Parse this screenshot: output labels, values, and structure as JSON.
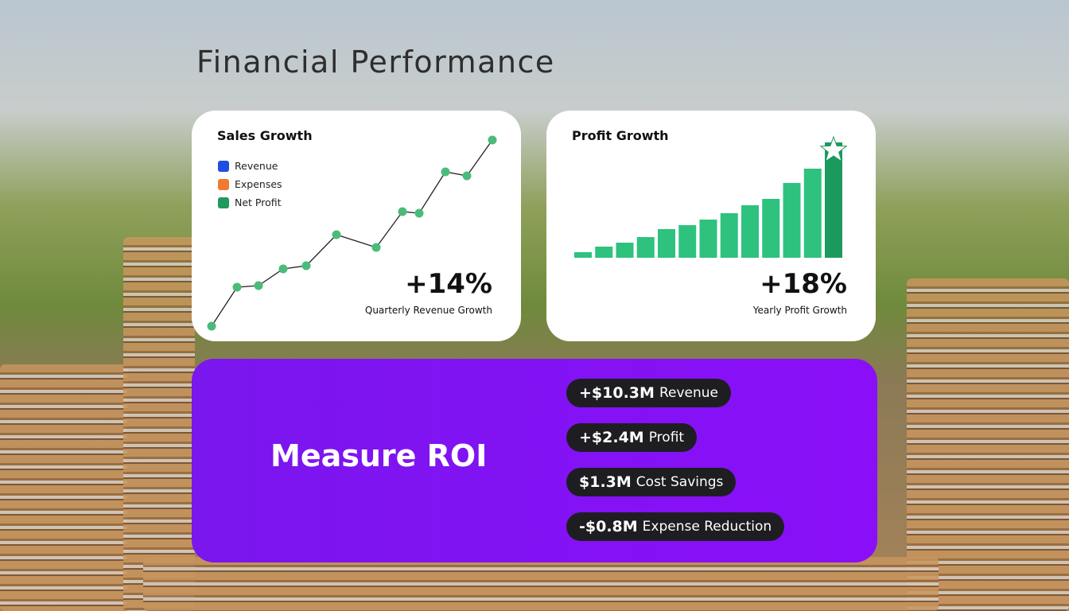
{
  "title": "Financial Performance",
  "chart_data": [
    {
      "type": "line",
      "title": "Sales Growth",
      "legend": [
        {
          "name": "Revenue",
          "color": "#1f4fe0"
        },
        {
          "name": "Expenses",
          "color": "#f07a30"
        },
        {
          "name": "Net Profit",
          "color": "#1f9a5a"
        }
      ],
      "x": [
        0,
        32,
        59,
        90,
        119,
        157,
        207,
        240,
        261,
        294,
        321,
        353
      ],
      "values": [
        20,
        69,
        71,
        92,
        96,
        135,
        119,
        164,
        162,
        214,
        209,
        254
      ],
      "color": "#4cbb7a",
      "line_color": "#222222",
      "stat": "+14%",
      "stat_label": "Quarterly Revenue Growth"
    },
    {
      "type": "bar",
      "title": "Profit Growth",
      "values": [
        7,
        14,
        19,
        26,
        36,
        41,
        48,
        56,
        66,
        74,
        94,
        112,
        145
      ],
      "colors": [
        "#2ec27e",
        "#2ec27e",
        "#2ec27e",
        "#2ec27e",
        "#2ec27e",
        "#2ec27e",
        "#2ec27e",
        "#2ec27e",
        "#2ec27e",
        "#2ec27e",
        "#2ec27e",
        "#2ec27e",
        "#1c9a5e"
      ],
      "stat": "+18%",
      "stat_label": "Yearly Profit Growth"
    }
  ],
  "roi": {
    "title": "Measure ROI",
    "items": [
      {
        "amount": "+$10.3M",
        "label": "Revenue"
      },
      {
        "amount": "+$2.4M",
        "label": "Profit"
      },
      {
        "amount": "$1.3M",
        "label": "Cost Savings"
      },
      {
        "amount": "-$0.8M",
        "label": "Expense Reduction"
      }
    ]
  }
}
